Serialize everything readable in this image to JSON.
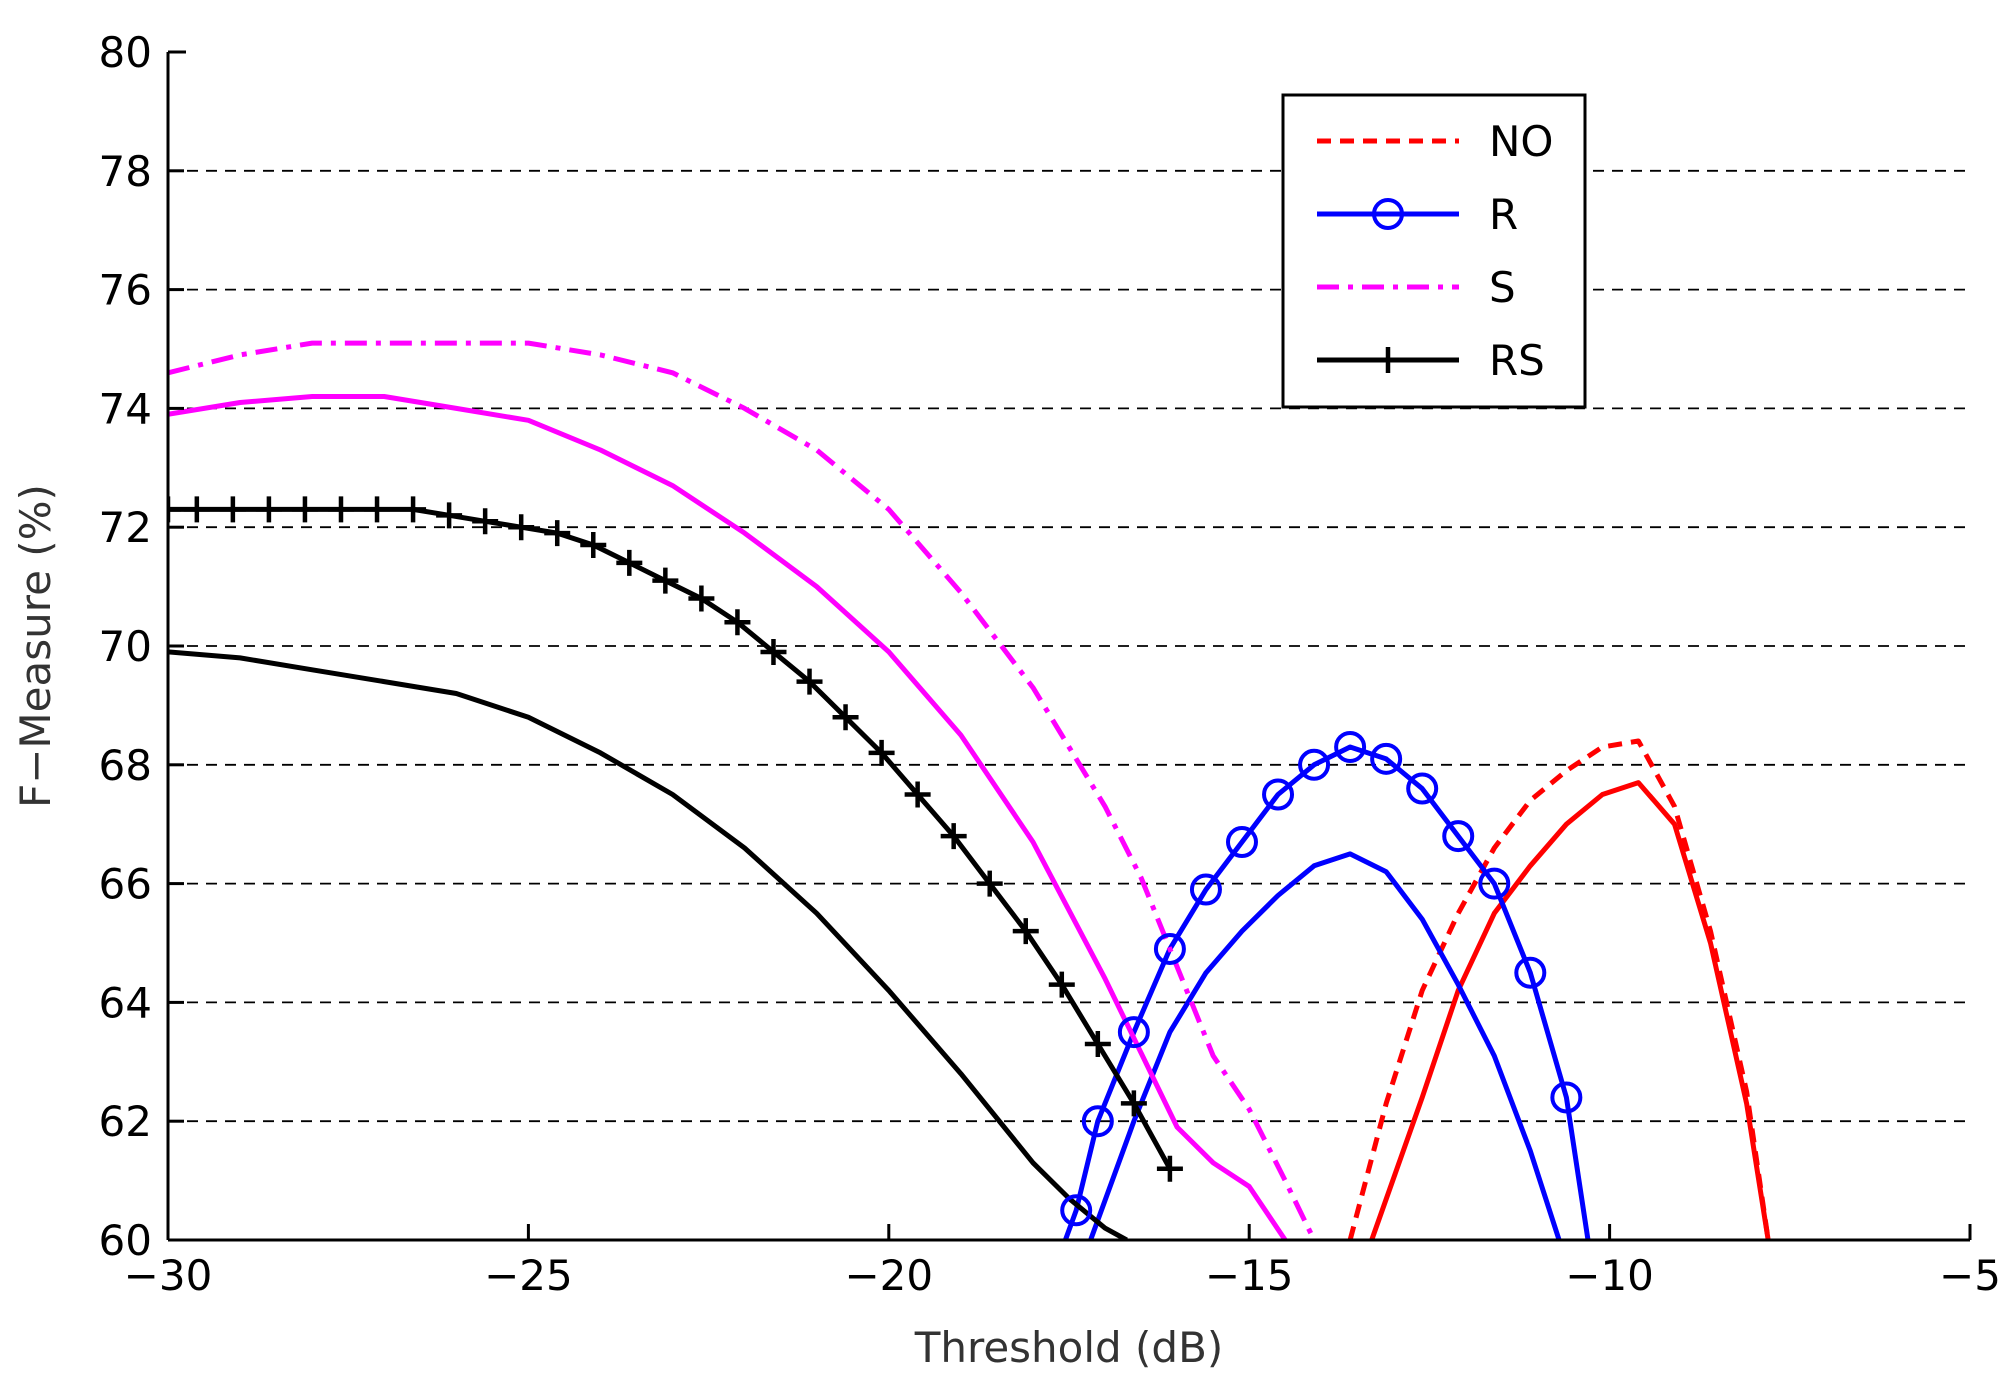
{
  "chart_data": {
    "type": "line",
    "xlabel": "Threshold (dB)",
    "ylabel": "F−Measure (%)",
    "xlim": [
      -30,
      -5
    ],
    "ylim": [
      60,
      80
    ],
    "xticks": [
      -30,
      -25,
      -20,
      -15,
      -10,
      -5
    ],
    "xtick_labels": [
      "−30",
      "−25",
      "−20",
      "−15",
      "−10",
      "−5"
    ],
    "yticks": [
      60,
      62,
      64,
      66,
      68,
      70,
      72,
      74,
      76,
      78,
      80
    ],
    "ytick_labels": [
      "60",
      "62",
      "64",
      "66",
      "68",
      "70",
      "72",
      "74",
      "76",
      "78",
      "80"
    ],
    "grid": "horizontal dashed",
    "legend_position": "top-right",
    "legend": [
      {
        "label": "NO",
        "color": "#ff0000",
        "dash": "dashed",
        "marker": "none"
      },
      {
        "label": "R",
        "color": "#0000ff",
        "dash": "solid",
        "marker": "circle"
      },
      {
        "label": "S",
        "color": "#ff00ff",
        "dash": "dashdot",
        "marker": "none"
      },
      {
        "label": "RS",
        "color": "#000000",
        "dash": "solid",
        "marker": "plus"
      }
    ],
    "series": [
      {
        "name": "NO",
        "color": "#ff0000",
        "dash": "dashed",
        "marker": "none",
        "x": [
          -13.6,
          -13.1,
          -12.6,
          -12.1,
          -11.6,
          -11.1,
          -10.6,
          -10.1,
          -9.6,
          -9.1,
          -8.6,
          -8.1,
          -7.8
        ],
        "y": [
          60,
          62.3,
          64.2,
          65.5,
          66.6,
          67.4,
          67.9,
          68.3,
          68.4,
          67.3,
          65.2,
          62.5,
          60
        ]
      },
      {
        "color": "#ff0000",
        "dash": "solid",
        "marker": "none",
        "x": [
          -13.3,
          -12.6,
          -12.1,
          -11.6,
          -11.1,
          -10.6,
          -10.1,
          -9.6,
          -9.1,
          -8.6,
          -8.1,
          -7.8
        ],
        "y": [
          60,
          62.4,
          64.2,
          65.5,
          66.3,
          67.0,
          67.5,
          67.7,
          67.0,
          65.0,
          62.3,
          60
        ]
      },
      {
        "name": "R",
        "color": "#0000ff",
        "dash": "solid",
        "marker": "circle",
        "x": [
          -17.55,
          -17.4,
          -17.1,
          -16.6,
          -16.1,
          -15.6,
          -15.1,
          -14.6,
          -14.1,
          -13.6,
          -13.1,
          -12.6,
          -12.1,
          -11.6,
          -11.1,
          -10.6,
          -10.3
        ],
        "y": [
          60,
          60.5,
          62.0,
          63.5,
          64.9,
          65.9,
          66.7,
          67.5,
          68.0,
          68.3,
          68.1,
          67.6,
          66.8,
          66.0,
          64.5,
          62.4,
          60
        ]
      },
      {
        "color": "#0000ff",
        "dash": "solid",
        "marker": "none",
        "x": [
          -17.2,
          -16.6,
          -16.1,
          -15.6,
          -15.1,
          -14.6,
          -14.1,
          -13.6,
          -13.1,
          -12.6,
          -12.1,
          -11.6,
          -11.1,
          -10.7
        ],
        "y": [
          60,
          62.0,
          63.5,
          64.5,
          65.2,
          65.8,
          66.3,
          66.5,
          66.2,
          65.4,
          64.3,
          63.1,
          61.5,
          60
        ]
      },
      {
        "name": "S",
        "color": "#ff00ff",
        "dash": "dashdot",
        "marker": "none",
        "x": [
          -30,
          -29,
          -28,
          -27,
          -26,
          -25,
          -24,
          -23,
          -22,
          -21,
          -20,
          -19,
          -18,
          -17,
          -16.5,
          -16,
          -15.5,
          -15,
          -14.5,
          -14.1
        ],
        "y": [
          74.6,
          74.9,
          75.1,
          75.1,
          75.1,
          75.1,
          74.9,
          74.6,
          74.0,
          73.3,
          72.3,
          70.9,
          69.3,
          67.3,
          66.1,
          64.6,
          63.1,
          62.2,
          61.0,
          60
        ]
      },
      {
        "color": "#ff00ff",
        "dash": "solid",
        "marker": "none",
        "x": [
          -30,
          -29,
          -28,
          -27,
          -26,
          -25,
          -24,
          -23,
          -22,
          -21,
          -20,
          -19,
          -18,
          -17,
          -16,
          -15.5,
          -15,
          -14.5
        ],
        "y": [
          73.9,
          74.1,
          74.2,
          74.2,
          74.0,
          73.8,
          73.3,
          72.7,
          71.9,
          71.0,
          69.9,
          68.5,
          66.7,
          64.4,
          61.9,
          61.3,
          60.9,
          60
        ]
      },
      {
        "name": "RS",
        "color": "#000000",
        "dash": "solid",
        "marker": "plus",
        "x": [
          -30,
          -29.6,
          -29.1,
          -28.6,
          -28.1,
          -27.6,
          -27.1,
          -26.6,
          -26.1,
          -25.6,
          -25.1,
          -24.6,
          -24.1,
          -23.6,
          -23.1,
          -22.6,
          -22.1,
          -21.6,
          -21.1,
          -20.6,
          -20.1,
          -19.6,
          -19.1,
          -18.6,
          -18.1,
          -17.6,
          -17.1,
          -16.6,
          -16.1
        ],
        "y": [
          72.3,
          72.3,
          72.3,
          72.3,
          72.3,
          72.3,
          72.3,
          72.3,
          72.2,
          72.1,
          72.0,
          71.9,
          71.7,
          71.4,
          71.1,
          70.8,
          70.4,
          69.9,
          69.4,
          68.8,
          68.2,
          67.5,
          66.8,
          66.0,
          65.2,
          64.3,
          63.3,
          62.3,
          61.2
        ]
      },
      {
        "color": "#000000",
        "dash": "solid",
        "marker": "none",
        "x": [
          -30,
          -29,
          -28,
          -27,
          -26,
          -25,
          -24,
          -23,
          -22,
          -21,
          -20,
          -19,
          -18,
          -17.5,
          -17,
          -16.7
        ],
        "y": [
          69.9,
          69.8,
          69.6,
          69.4,
          69.2,
          68.8,
          68.2,
          67.5,
          66.6,
          65.5,
          64.2,
          62.8,
          61.3,
          60.7,
          60.2,
          60
        ]
      }
    ]
  }
}
